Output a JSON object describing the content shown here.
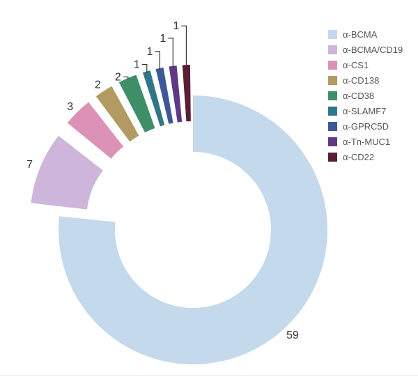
{
  "chart_data": {
    "type": "pie",
    "donut": true,
    "exploded": true,
    "categories": [
      "α-BCMA",
      "α-BCMA/CD19",
      "α-CS1",
      "α-CD138",
      "α-CD38",
      "α-SLAMF7",
      "α-GPRC5D",
      "α-Tn-MUC1",
      "α-CD22"
    ],
    "values": [
      59,
      7,
      3,
      2,
      2,
      1,
      1,
      1,
      1
    ],
    "data_labels": [
      "59",
      "7",
      "3",
      "2",
      "2",
      "1",
      "1",
      "1",
      "1"
    ],
    "colors": [
      "#c5d9ed",
      "#cdb5dc",
      "#dc92b6",
      "#b29a62",
      "#3e8f68",
      "#2f7788",
      "#3f5797",
      "#5e3a86",
      "#5a1e34"
    ],
    "legend_position": "top-right",
    "title": ""
  },
  "legend": {
    "items": [
      {
        "label": "α-BCMA",
        "color": "#c5d9ed"
      },
      {
        "label": "α-BCMA/CD19",
        "color": "#cdb5dc"
      },
      {
        "label": "α-CS1",
        "color": "#dc92b6"
      },
      {
        "label": "α-CD138",
        "color": "#b29a62"
      },
      {
        "label": "α-CD38",
        "color": "#3e8f68"
      },
      {
        "label": "α-SLAMF7",
        "color": "#2f7788"
      },
      {
        "label": "α-GPRC5D",
        "color": "#3f5797"
      },
      {
        "label": "α-Tn-MUC1",
        "color": "#5e3a86"
      },
      {
        "label": "α-CD22",
        "color": "#5a1e34"
      }
    ]
  }
}
